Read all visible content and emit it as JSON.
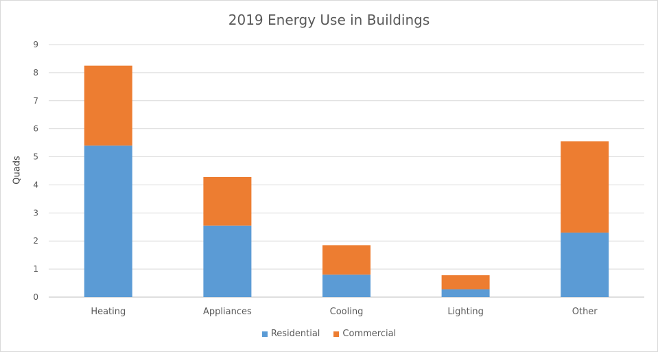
{
  "chart_data": {
    "type": "bar",
    "stacked": true,
    "title": "2019 Energy Use in Buildings",
    "xlabel": "",
    "ylabel": "Quads",
    "ylim": [
      0,
      9
    ],
    "yticks": [
      0,
      1,
      2,
      3,
      4,
      5,
      6,
      7,
      8,
      9
    ],
    "grid": true,
    "legend_position": "bottom",
    "categories": [
      "Heating",
      "Appliances",
      "Cooling",
      "Lighting",
      "Other"
    ],
    "series": [
      {
        "name": "Residential",
        "color": "#5b9bd5",
        "values": [
          5.4,
          2.55,
          0.8,
          0.28,
          2.3
        ]
      },
      {
        "name": "Commercial",
        "color": "#ed7d31",
        "values": [
          2.85,
          1.73,
          1.05,
          0.5,
          3.25
        ]
      }
    ]
  }
}
